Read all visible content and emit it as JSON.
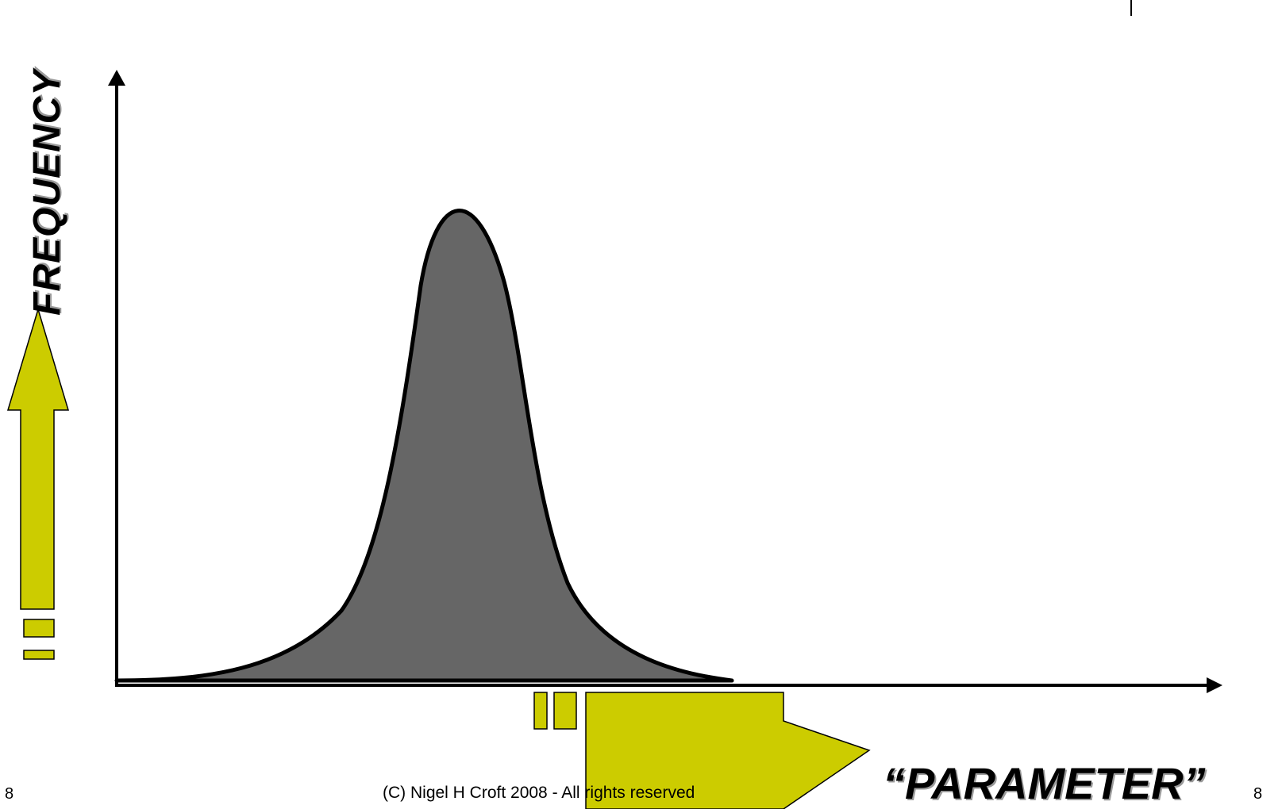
{
  "diagram": {
    "y_axis_label": "FREQUENCY",
    "x_axis_label": "“PARAMETER”",
    "curve_fill_color": "#666666",
    "arrow_fill_color": "#cccc00"
  },
  "footer": {
    "copyright": "(C) Nigel H Croft 2008  - All rights reserved",
    "page_number_left": "8",
    "page_number_right": "8"
  }
}
